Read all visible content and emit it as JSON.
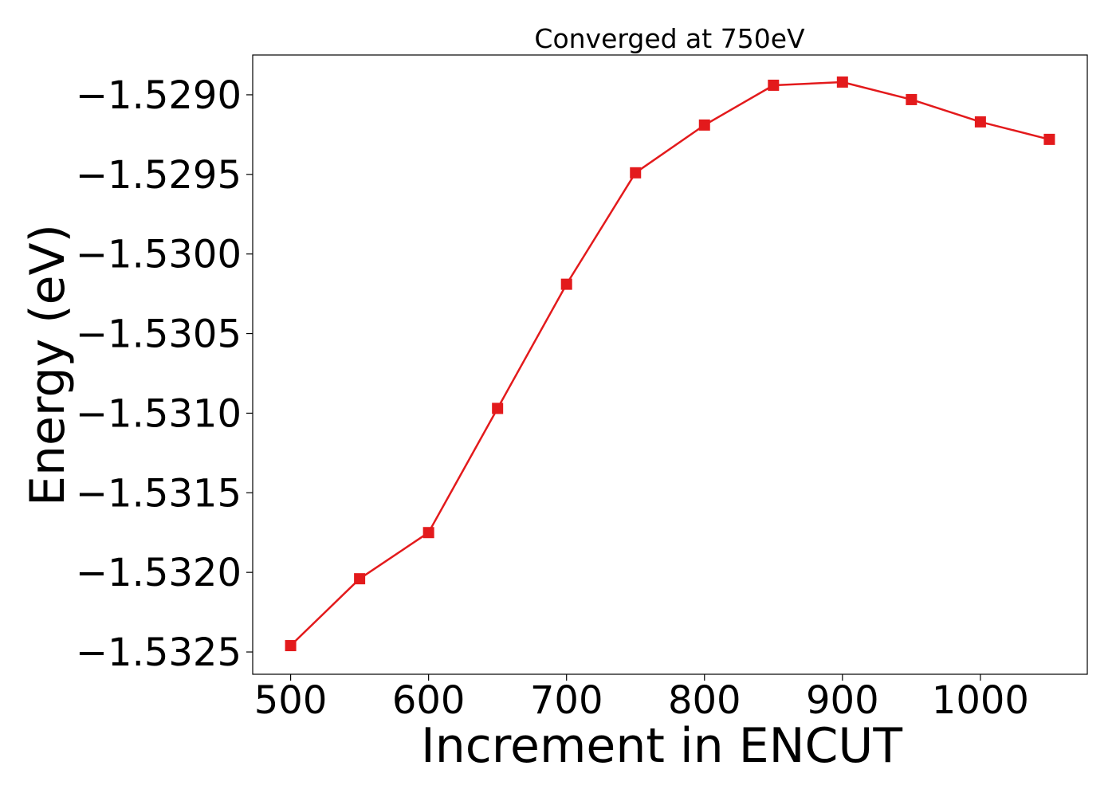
{
  "chart_data": {
    "type": "line",
    "title": "Converged at 750eV",
    "xlabel": "Increment in ENCUT",
    "ylabel": "Energy (eV)",
    "x": [
      500,
      550,
      600,
      650,
      700,
      750,
      800,
      850,
      900,
      950,
      1000,
      1050
    ],
    "series": [
      {
        "values": [
          -1.53246,
          -1.53204,
          -1.53175,
          -1.53097,
          -1.53019,
          -1.52949,
          -1.52919,
          -1.52894,
          -1.52892,
          -1.52903,
          -1.52917,
          -1.52928
        ],
        "color": "#e31a1c",
        "marker": "square"
      }
    ],
    "xticks": [
      500,
      600,
      700,
      800,
      900,
      1000
    ],
    "xtick_labels": [
      "500",
      "600",
      "700",
      "800",
      "900",
      "1000"
    ],
    "yticks": [
      -1.5325,
      -1.532,
      -1.5315,
      -1.531,
      -1.5305,
      -1.53,
      -1.5295,
      -1.529
    ],
    "ytick_labels": [
      "−1.5325",
      "−1.5320",
      "−1.5315",
      "−1.5310",
      "−1.5305",
      "−1.5300",
      "−1.5295",
      "−1.5290"
    ],
    "xlim": [
      472.5,
      1077.5
    ],
    "ylim": [
      -1.53264,
      -1.52875
    ],
    "grid": false,
    "legend": "none"
  }
}
